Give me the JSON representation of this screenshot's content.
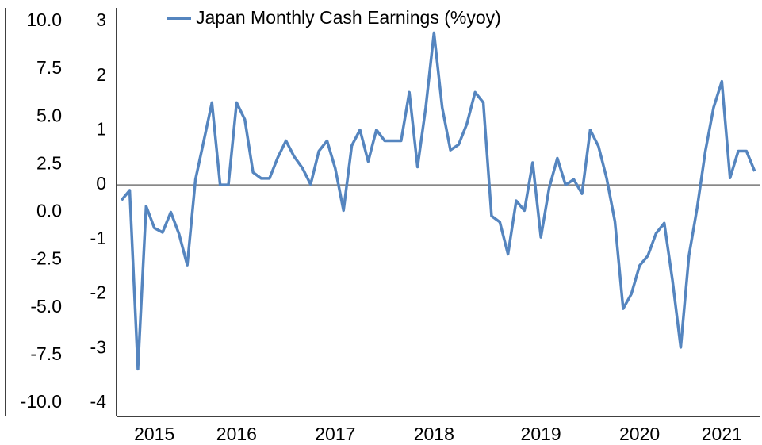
{
  "chart_data": {
    "type": "line",
    "categories": [
      null,
      null,
      null,
      null,
      "2015",
      null,
      null,
      null,
      null,
      null,
      null,
      null,
      null,
      null,
      "2016",
      null,
      null,
      null,
      null,
      null,
      null,
      null,
      null,
      null,
      null,
      null,
      "2017",
      null,
      null,
      null,
      null,
      null,
      null,
      null,
      null,
      null,
      null,
      null,
      "2018",
      null,
      null,
      null,
      null,
      null,
      null,
      null,
      null,
      null,
      null,
      null,
      null,
      "2019",
      null,
      null,
      null,
      null,
      null,
      null,
      null,
      null,
      null,
      null,
      null,
      "2020",
      null,
      null,
      null,
      null,
      null,
      null,
      null,
      null,
      null,
      "2021",
      null,
      null,
      null,
      null
    ],
    "series": [
      {
        "name": "Japan Monthly Cash Earnings (%yoy)",
        "color": "#5585bf",
        "axis": "y2",
        "values": [
          -0.28,
          -0.1,
          -3.38,
          -0.39,
          -0.79,
          -0.87,
          -0.5,
          -0.9,
          -1.47,
          0.1,
          0.8,
          1.51,
          0,
          0,
          1.51,
          1.2,
          0.23,
          0.12,
          0.12,
          0.5,
          0.81,
          0.52,
          0.31,
          0.01,
          0.62,
          0.81,
          0.3,
          -0.47,
          0.72,
          1.01,
          0.43,
          1.01,
          0.81,
          0.81,
          0.81,
          1.7,
          0.33,
          1.42,
          2.79,
          1.42,
          0.64,
          0.74,
          1.12,
          1.7,
          1.51,
          -0.57,
          -0.68,
          -1.27,
          -0.29,
          -0.47,
          0.41,
          -0.96,
          -0.06,
          0.49,
          0,
          0.1,
          -0.16,
          1.01,
          0.71,
          0.12,
          -0.67,
          -2.27,
          -2.0,
          -1.48,
          -1.3,
          -0.89,
          -0.7,
          -1.75,
          -2.98,
          -1.3,
          -0.42,
          0.62,
          1.42,
          1.9,
          0.13,
          0.62,
          0.62,
          0.25
        ]
      }
    ],
    "ylim": [
      -10,
      10
    ],
    "yticks": [
      {
        "value": -10,
        "label": "-10.0"
      },
      -7.5,
      {
        "value": -5,
        "label": "-5.0"
      },
      -2.5,
      {
        "value": 0,
        "label": "0.0"
      },
      2.5,
      {
        "value": 5,
        "label": "5.0"
      },
      7.5,
      {
        "value": 10,
        "label": "10.0"
      }
    ],
    "y2lim": [
      -4,
      3
    ],
    "y2ticks": [
      -4,
      -3,
      -2,
      -1,
      0,
      1,
      2,
      3
    ],
    "legend": "top"
  }
}
